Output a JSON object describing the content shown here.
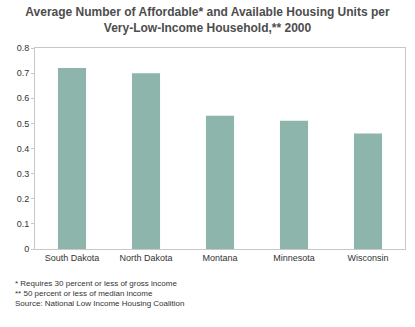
{
  "chart_data": {
    "type": "bar",
    "title": "Average Number of Affordable* and Available Housing Units per Very-Low-Income Household,** 2000",
    "categories": [
      "South Dakota",
      "North Dakota",
      "Montana",
      "Minnesota",
      "Wisconsin"
    ],
    "values": [
      0.72,
      0.7,
      0.53,
      0.51,
      0.46
    ],
    "color": "#8db5ac",
    "ylim": [
      0,
      0.8
    ],
    "yticks": [
      0,
      0.1,
      0.2,
      0.3,
      0.4,
      0.5,
      0.6,
      0.7,
      0.8
    ],
    "grid": false,
    "notes": [
      "* Requires 30 percent or less of gross income",
      "** 50 percent or less of median income",
      "Source: National Low Income Housing Coalition"
    ]
  }
}
